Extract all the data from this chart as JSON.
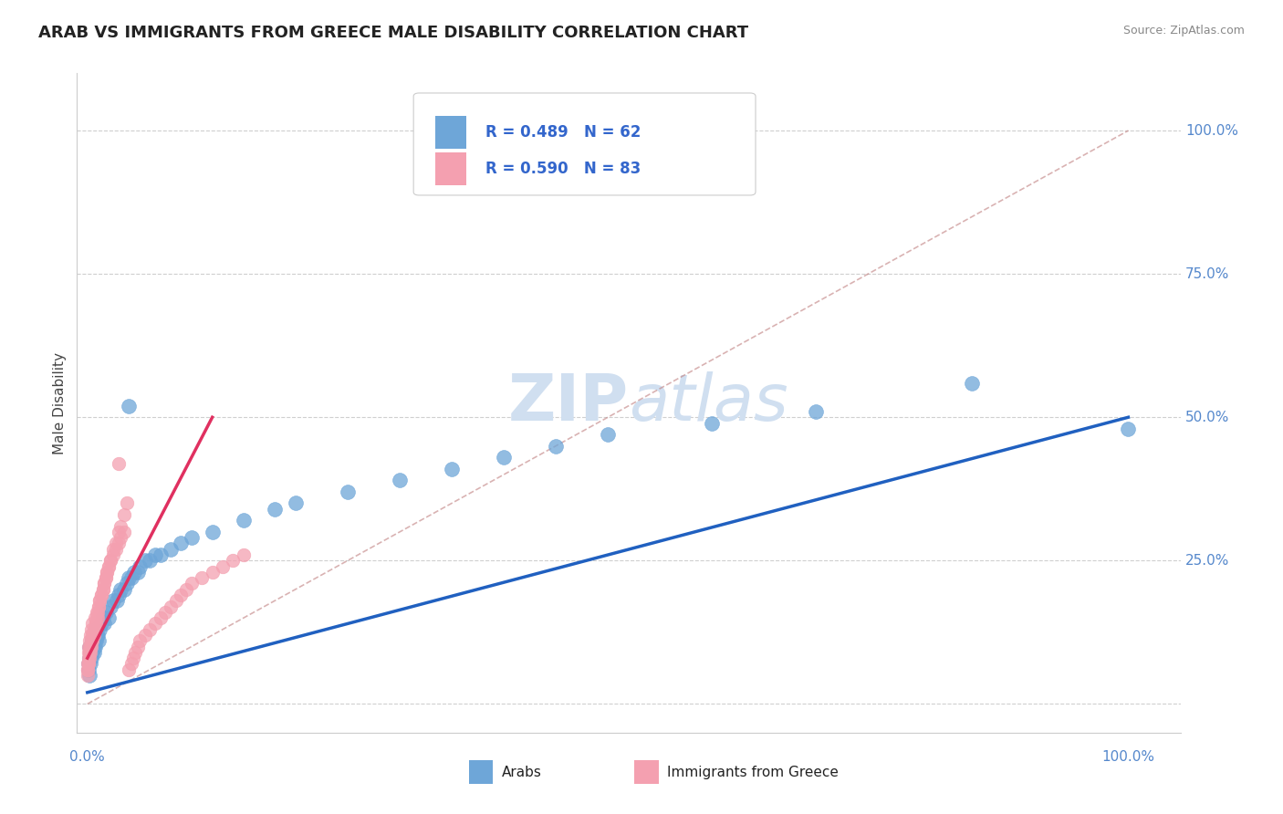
{
  "title": "ARAB VS IMMIGRANTS FROM GREECE MALE DISABILITY CORRELATION CHART",
  "source": "Source: ZipAtlas.com",
  "ylabel": "Male Disability",
  "legend_arab": "Arabs",
  "legend_greece": "Immigrants from Greece",
  "arab_R": 0.489,
  "arab_N": 62,
  "greece_R": 0.59,
  "greece_N": 83,
  "arab_color": "#6ea6d8",
  "greece_color": "#f4a0b0",
  "arab_line_color": "#2060c0",
  "greece_line_color": "#e03060",
  "arab_x": [
    0.001,
    0.002,
    0.001,
    0.003,
    0.002,
    0.04,
    0.003,
    0.004,
    0.002,
    0.005,
    0.003,
    0.006,
    0.004,
    0.007,
    0.005,
    0.008,
    0.006,
    0.009,
    0.007,
    0.01,
    0.008,
    0.011,
    0.009,
    0.012,
    0.013,
    0.015,
    0.016,
    0.018,
    0.02,
    0.022,
    0.025,
    0.028,
    0.03,
    0.032,
    0.035,
    0.038,
    0.04,
    0.042,
    0.045,
    0.048,
    0.05,
    0.055,
    0.06,
    0.065,
    0.07,
    0.08,
    0.09,
    0.1,
    0.12,
    0.15,
    0.18,
    0.2,
    0.25,
    0.3,
    0.35,
    0.4,
    0.45,
    0.5,
    0.6,
    0.7,
    0.85,
    1.0
  ],
  "arab_y": [
    0.06,
    0.05,
    0.07,
    0.07,
    0.08,
    0.52,
    0.09,
    0.08,
    0.1,
    0.09,
    0.1,
    0.09,
    0.1,
    0.1,
    0.11,
    0.11,
    0.1,
    0.12,
    0.11,
    0.12,
    0.13,
    0.11,
    0.12,
    0.13,
    0.14,
    0.15,
    0.14,
    0.16,
    0.15,
    0.17,
    0.18,
    0.18,
    0.19,
    0.2,
    0.2,
    0.21,
    0.22,
    0.22,
    0.23,
    0.23,
    0.24,
    0.25,
    0.25,
    0.26,
    0.26,
    0.27,
    0.28,
    0.29,
    0.3,
    0.32,
    0.34,
    0.35,
    0.37,
    0.39,
    0.41,
    0.43,
    0.45,
    0.47,
    0.49,
    0.51,
    0.56,
    0.48
  ],
  "greece_x": [
    0.0,
    0.0,
    0.0,
    0.03,
    0.001,
    0.001,
    0.001,
    0.001,
    0.002,
    0.002,
    0.002,
    0.003,
    0.003,
    0.004,
    0.004,
    0.005,
    0.005,
    0.006,
    0.007,
    0.008,
    0.009,
    0.01,
    0.011,
    0.012,
    0.013,
    0.015,
    0.016,
    0.018,
    0.019,
    0.02,
    0.022,
    0.025,
    0.027,
    0.03,
    0.032,
    0.035,
    0.038,
    0.04,
    0.042,
    0.044,
    0.046,
    0.048,
    0.05,
    0.055,
    0.06,
    0.065,
    0.07,
    0.075,
    0.08,
    0.085,
    0.09,
    0.095,
    0.1,
    0.11,
    0.12,
    0.13,
    0.14,
    0.15,
    0.0,
    0.001,
    0.002,
    0.003,
    0.004,
    0.005,
    0.006,
    0.007,
    0.008,
    0.009,
    0.01,
    0.011,
    0.012,
    0.013,
    0.015,
    0.016,
    0.018,
    0.019,
    0.02,
    0.022,
    0.025,
    0.027,
    0.03,
    0.032,
    0.035
  ],
  "greece_y": [
    0.05,
    0.06,
    0.07,
    0.42,
    0.07,
    0.08,
    0.09,
    0.1,
    0.09,
    0.1,
    0.11,
    0.1,
    0.12,
    0.11,
    0.13,
    0.12,
    0.14,
    0.13,
    0.15,
    0.14,
    0.16,
    0.15,
    0.17,
    0.18,
    0.19,
    0.2,
    0.21,
    0.22,
    0.23,
    0.24,
    0.25,
    0.27,
    0.28,
    0.3,
    0.31,
    0.33,
    0.35,
    0.06,
    0.07,
    0.08,
    0.09,
    0.1,
    0.11,
    0.12,
    0.13,
    0.14,
    0.15,
    0.16,
    0.17,
    0.18,
    0.19,
    0.2,
    0.21,
    0.22,
    0.23,
    0.24,
    0.25,
    0.26,
    0.06,
    0.07,
    0.08,
    0.09,
    0.1,
    0.11,
    0.12,
    0.13,
    0.14,
    0.15,
    0.16,
    0.17,
    0.18,
    0.19,
    0.2,
    0.21,
    0.22,
    0.23,
    0.24,
    0.25,
    0.26,
    0.27,
    0.28,
    0.29,
    0.3
  ],
  "arab_line_x": [
    0.0,
    1.0
  ],
  "arab_line_y": [
    0.02,
    0.5
  ],
  "greece_line_x": [
    0.0,
    0.12
  ],
  "greece_line_y": [
    0.08,
    0.5
  ],
  "ref_line_x": [
    0.0,
    1.0
  ],
  "ref_line_y": [
    0.0,
    1.0
  ],
  "xlim": [
    -0.01,
    1.05
  ],
  "ylim": [
    -0.05,
    1.1
  ],
  "yticks": [
    0.0,
    0.25,
    0.5,
    0.75,
    1.0
  ],
  "ytick_labels": [
    "",
    "25.0%",
    "50.0%",
    "75.0%",
    "100.0%"
  ],
  "right_label_color": "#5588cc",
  "grid_color": "#bbbbbb",
  "title_color": "#222222",
  "source_color": "#888888",
  "watermark_zip": "ZIP",
  "watermark_atlas": "atlas",
  "watermark_color": "#d0dff0"
}
